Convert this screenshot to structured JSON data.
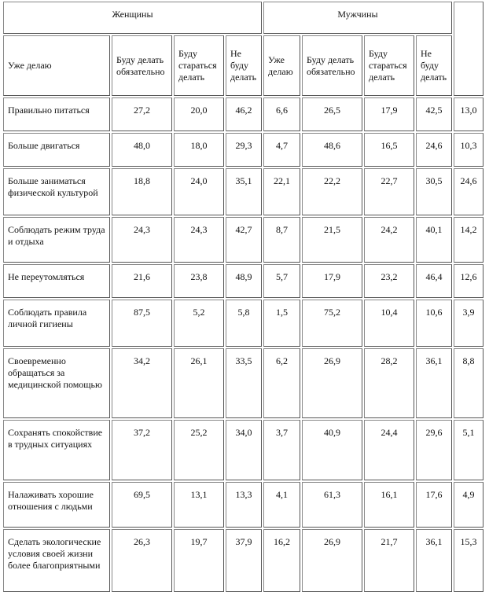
{
  "header": {
    "women": "Женщины",
    "men": "Мужчины",
    "columns": [
      "Уже делаю",
      "Буду делать обязательно",
      "Буду стараться делать",
      "Не буду делать",
      "Уже делаю",
      "Буду делать обязательно",
      "Буду стараться делать",
      "Не буду делать"
    ]
  },
  "rows": [
    {
      "label": "Правильно питаться",
      "values": [
        "27,2",
        "20,0",
        "46,2",
        "6,6",
        "26,5",
        "17,9",
        "42,5",
        "13,0"
      ]
    },
    {
      "label": "Больше двигаться",
      "values": [
        "48,0",
        "18,0",
        "29,3",
        "4,7",
        "48,6",
        "16,5",
        "24,6",
        "10,3"
      ]
    },
    {
      "label": "Больше заниматься физической культурой",
      "values": [
        "18,8",
        "24,0",
        "35,1",
        "22,1",
        "22,2",
        "22,7",
        "30,5",
        "24,6"
      ]
    },
    {
      "label": "Соблюдать режим труда и отдыха",
      "values": [
        "24,3",
        "24,3",
        "42,7",
        "8,7",
        "21,5",
        "24,2",
        "40,1",
        "14,2"
      ]
    },
    {
      "label": "Не переутомляться",
      "values": [
        "21,6",
        "23,8",
        "48,9",
        "5,7",
        "17,9",
        "23,2",
        "46,4",
        "12,6"
      ]
    },
    {
      "label": "Соблюдать правила личной гигиены",
      "values": [
        "87,5",
        "5,2",
        "5,8",
        "1,5",
        "75,2",
        "10,4",
        "10,6",
        "3,9"
      ]
    },
    {
      "label": "Своевременно обращаться за медицинской помощью",
      "values": [
        "34,2",
        "26,1",
        "33,5",
        "6,2",
        "26,9",
        "28,2",
        "36,1",
        "8,8"
      ]
    },
    {
      "label": "Сохранять спокойствие в трудных ситуациях",
      "values": [
        "37,2",
        "25,2",
        "34,0",
        "3,7",
        "40,9",
        "24,4",
        "29,6",
        "5,1"
      ]
    },
    {
      "label": "Налаживать хорошие отношения с людьми",
      "values": [
        "69,5",
        "13,1",
        "13,3",
        "4,1",
        "61,3",
        "16,1",
        "17,6",
        "4,9"
      ]
    },
    {
      "label": "Сделать экологические условия своей жизни более благоприятными",
      "values": [
        "26,3",
        "19,7",
        "37,9",
        "16,2",
        "26,9",
        "21,7",
        "36,1",
        "15,3"
      ]
    }
  ]
}
